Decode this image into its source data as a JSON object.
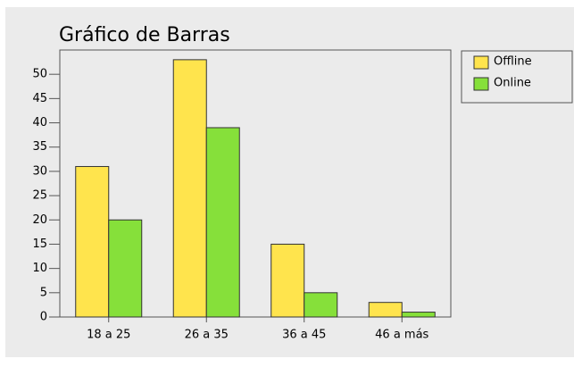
{
  "chart_data": {
    "type": "bar",
    "title": "Gráfico de Barras",
    "categories": [
      "18 a 25",
      "26 a 35",
      "36 a 45",
      "46 a más"
    ],
    "series": [
      {
        "name": "Offline",
        "color": "#ffe44d",
        "values": [
          31,
          53,
          15,
          3
        ]
      },
      {
        "name": "Online",
        "color": "#86e03a",
        "values": [
          20,
          39,
          5,
          1
        ]
      }
    ],
    "ylim": [
      0,
      55
    ],
    "yticks": [
      0,
      5,
      10,
      15,
      20,
      25,
      30,
      35,
      40,
      45,
      50
    ],
    "legend": "right"
  }
}
